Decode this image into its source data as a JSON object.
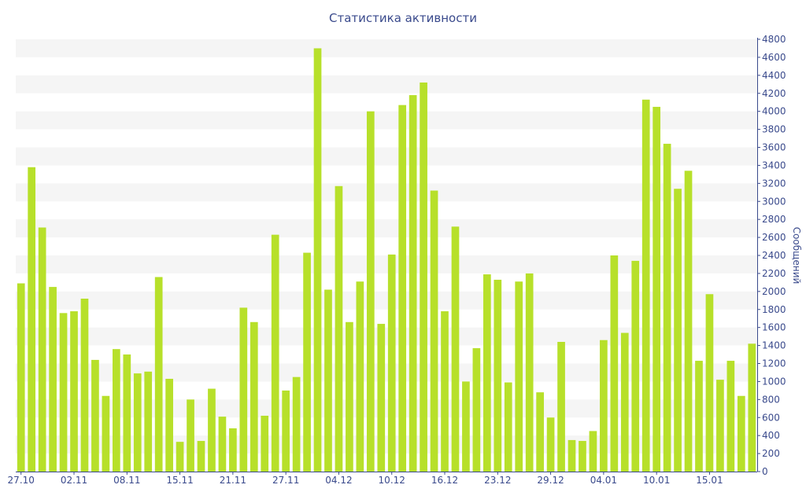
{
  "chart_data": {
    "type": "bar",
    "title": "Статистика активности",
    "ylabel": "Сообщений",
    "xlabel": "",
    "ylim": [
      0,
      4800
    ],
    "y_ticks": [
      0,
      200,
      400,
      600,
      800,
      1000,
      1200,
      1400,
      1600,
      1800,
      2000,
      2200,
      2400,
      2600,
      2800,
      3000,
      3200,
      3400,
      3600,
      3800,
      4000,
      4200,
      4400,
      4600,
      4800
    ],
    "y_axis_position": "right",
    "grid": "alternating horizontal bands",
    "x_tick_labels": [
      "27.10",
      "02.11",
      "08.11",
      "15.11",
      "21.11",
      "27.11",
      "04.12",
      "10.12",
      "16.12",
      "23.12",
      "29.12",
      "04.01",
      "10.01",
      "15.01"
    ],
    "x_tick_positions": [
      0,
      5,
      10,
      15,
      20,
      25,
      30,
      35,
      40,
      45,
      50,
      55,
      60,
      65
    ],
    "bar_color": "#b7e02a",
    "values": [
      2090,
      3380,
      2710,
      2050,
      1760,
      1780,
      1920,
      1240,
      840,
      1360,
      1300,
      1090,
      1110,
      2160,
      1030,
      330,
      800,
      340,
      920,
      610,
      480,
      1820,
      1660,
      620,
      2630,
      900,
      1050,
      2430,
      4700,
      2020,
      3170,
      1660,
      2110,
      4000,
      1640,
      2410,
      4070,
      4180,
      4320,
      3120,
      1780,
      2720,
      1000,
      1370,
      2190,
      2130,
      990,
      2110,
      2200,
      880,
      600,
      1440,
      350,
      340,
      450,
      1460,
      2400,
      1540,
      2340,
      4130,
      4050,
      3640,
      3140,
      3340,
      1230,
      1970,
      1020,
      1230,
      840,
      1420
    ]
  },
  "colors": {
    "title": "#3a4a8c",
    "axis": "#3a4a8c",
    "band": "#f5f5f5"
  }
}
